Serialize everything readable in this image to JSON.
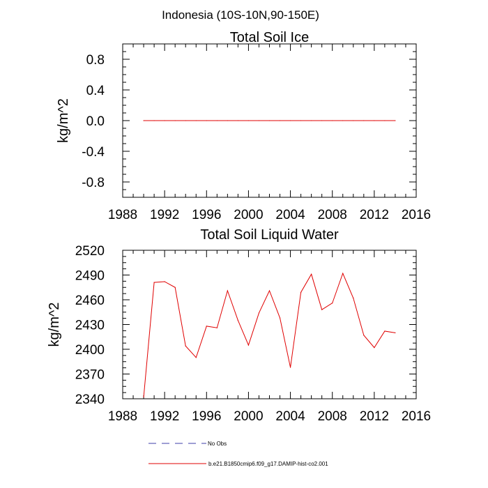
{
  "figure_title": "Indonesia (10S-10N,90-150E)",
  "legend": [
    {
      "label": "No Obs",
      "color": "#3d3da8",
      "style": "dashed"
    },
    {
      "label": "b.e21.B1850cmip6.f09_g17.DAMIP-hist-co2.001",
      "color": "#e00000",
      "style": "solid"
    }
  ],
  "chart_data": [
    {
      "type": "line",
      "title": "Total Soil Ice",
      "xlabel": "",
      "ylabel": "kg/m^2",
      "xlim": [
        1988,
        2016
      ],
      "ylim": [
        -1.0,
        1.0
      ],
      "xticks": [
        1988,
        1992,
        1996,
        2000,
        2004,
        2008,
        2012,
        2016
      ],
      "yticks": [
        -0.8,
        -0.4,
        0.0,
        0.4,
        0.8
      ],
      "ytick_labels": [
        "-0.8",
        "-0.4",
        "0.0",
        "0.4",
        "0.8"
      ],
      "grid": false,
      "series": [
        {
          "name": "b.e21.B1850cmip6.f09_g17.DAMIP-hist-co2.001",
          "color": "#e00000",
          "x": [
            1990,
            1991,
            1992,
            1993,
            1994,
            1995,
            1996,
            1997,
            1998,
            1999,
            2000,
            2001,
            2002,
            2003,
            2004,
            2005,
            2006,
            2007,
            2008,
            2009,
            2010,
            2011,
            2012,
            2013,
            2014
          ],
          "values": [
            0,
            0,
            0,
            0,
            0,
            0,
            0,
            0,
            0,
            0,
            0,
            0,
            0,
            0,
            0,
            0,
            0,
            0,
            0,
            0,
            0,
            0,
            0,
            0,
            0
          ]
        }
      ]
    },
    {
      "type": "line",
      "title": "Total Soil Liquid Water",
      "xlabel": "",
      "ylabel": "kg/m^2",
      "xlim": [
        1988,
        2016
      ],
      "ylim": [
        2340,
        2520
      ],
      "xticks": [
        1988,
        1992,
        1996,
        2000,
        2004,
        2008,
        2012,
        2016
      ],
      "yticks": [
        2340,
        2370,
        2400,
        2430,
        2460,
        2490,
        2520
      ],
      "ytick_labels": [
        "2340",
        "2370",
        "2400",
        "2430",
        "2460",
        "2490",
        "2520"
      ],
      "grid": false,
      "series": [
        {
          "name": "b.e21.B1850cmip6.f09_g17.DAMIP-hist-co2.001",
          "color": "#e00000",
          "x": [
            1990,
            1991,
            1992,
            1993,
            1994,
            1995,
            1996,
            1997,
            1998,
            1999,
            2000,
            2001,
            2002,
            2003,
            2004,
            2005,
            2006,
            2007,
            2008,
            2009,
            2010,
            2011,
            2012,
            2013,
            2014
          ],
          "values": [
            2342,
            2481,
            2482,
            2475,
            2404,
            2390,
            2428,
            2426,
            2471,
            2435,
            2405,
            2444,
            2471,
            2438,
            2378,
            2469,
            2491,
            2448,
            2456,
            2492,
            2462,
            2417,
            2402,
            2422,
            2420
          ]
        }
      ]
    }
  ]
}
